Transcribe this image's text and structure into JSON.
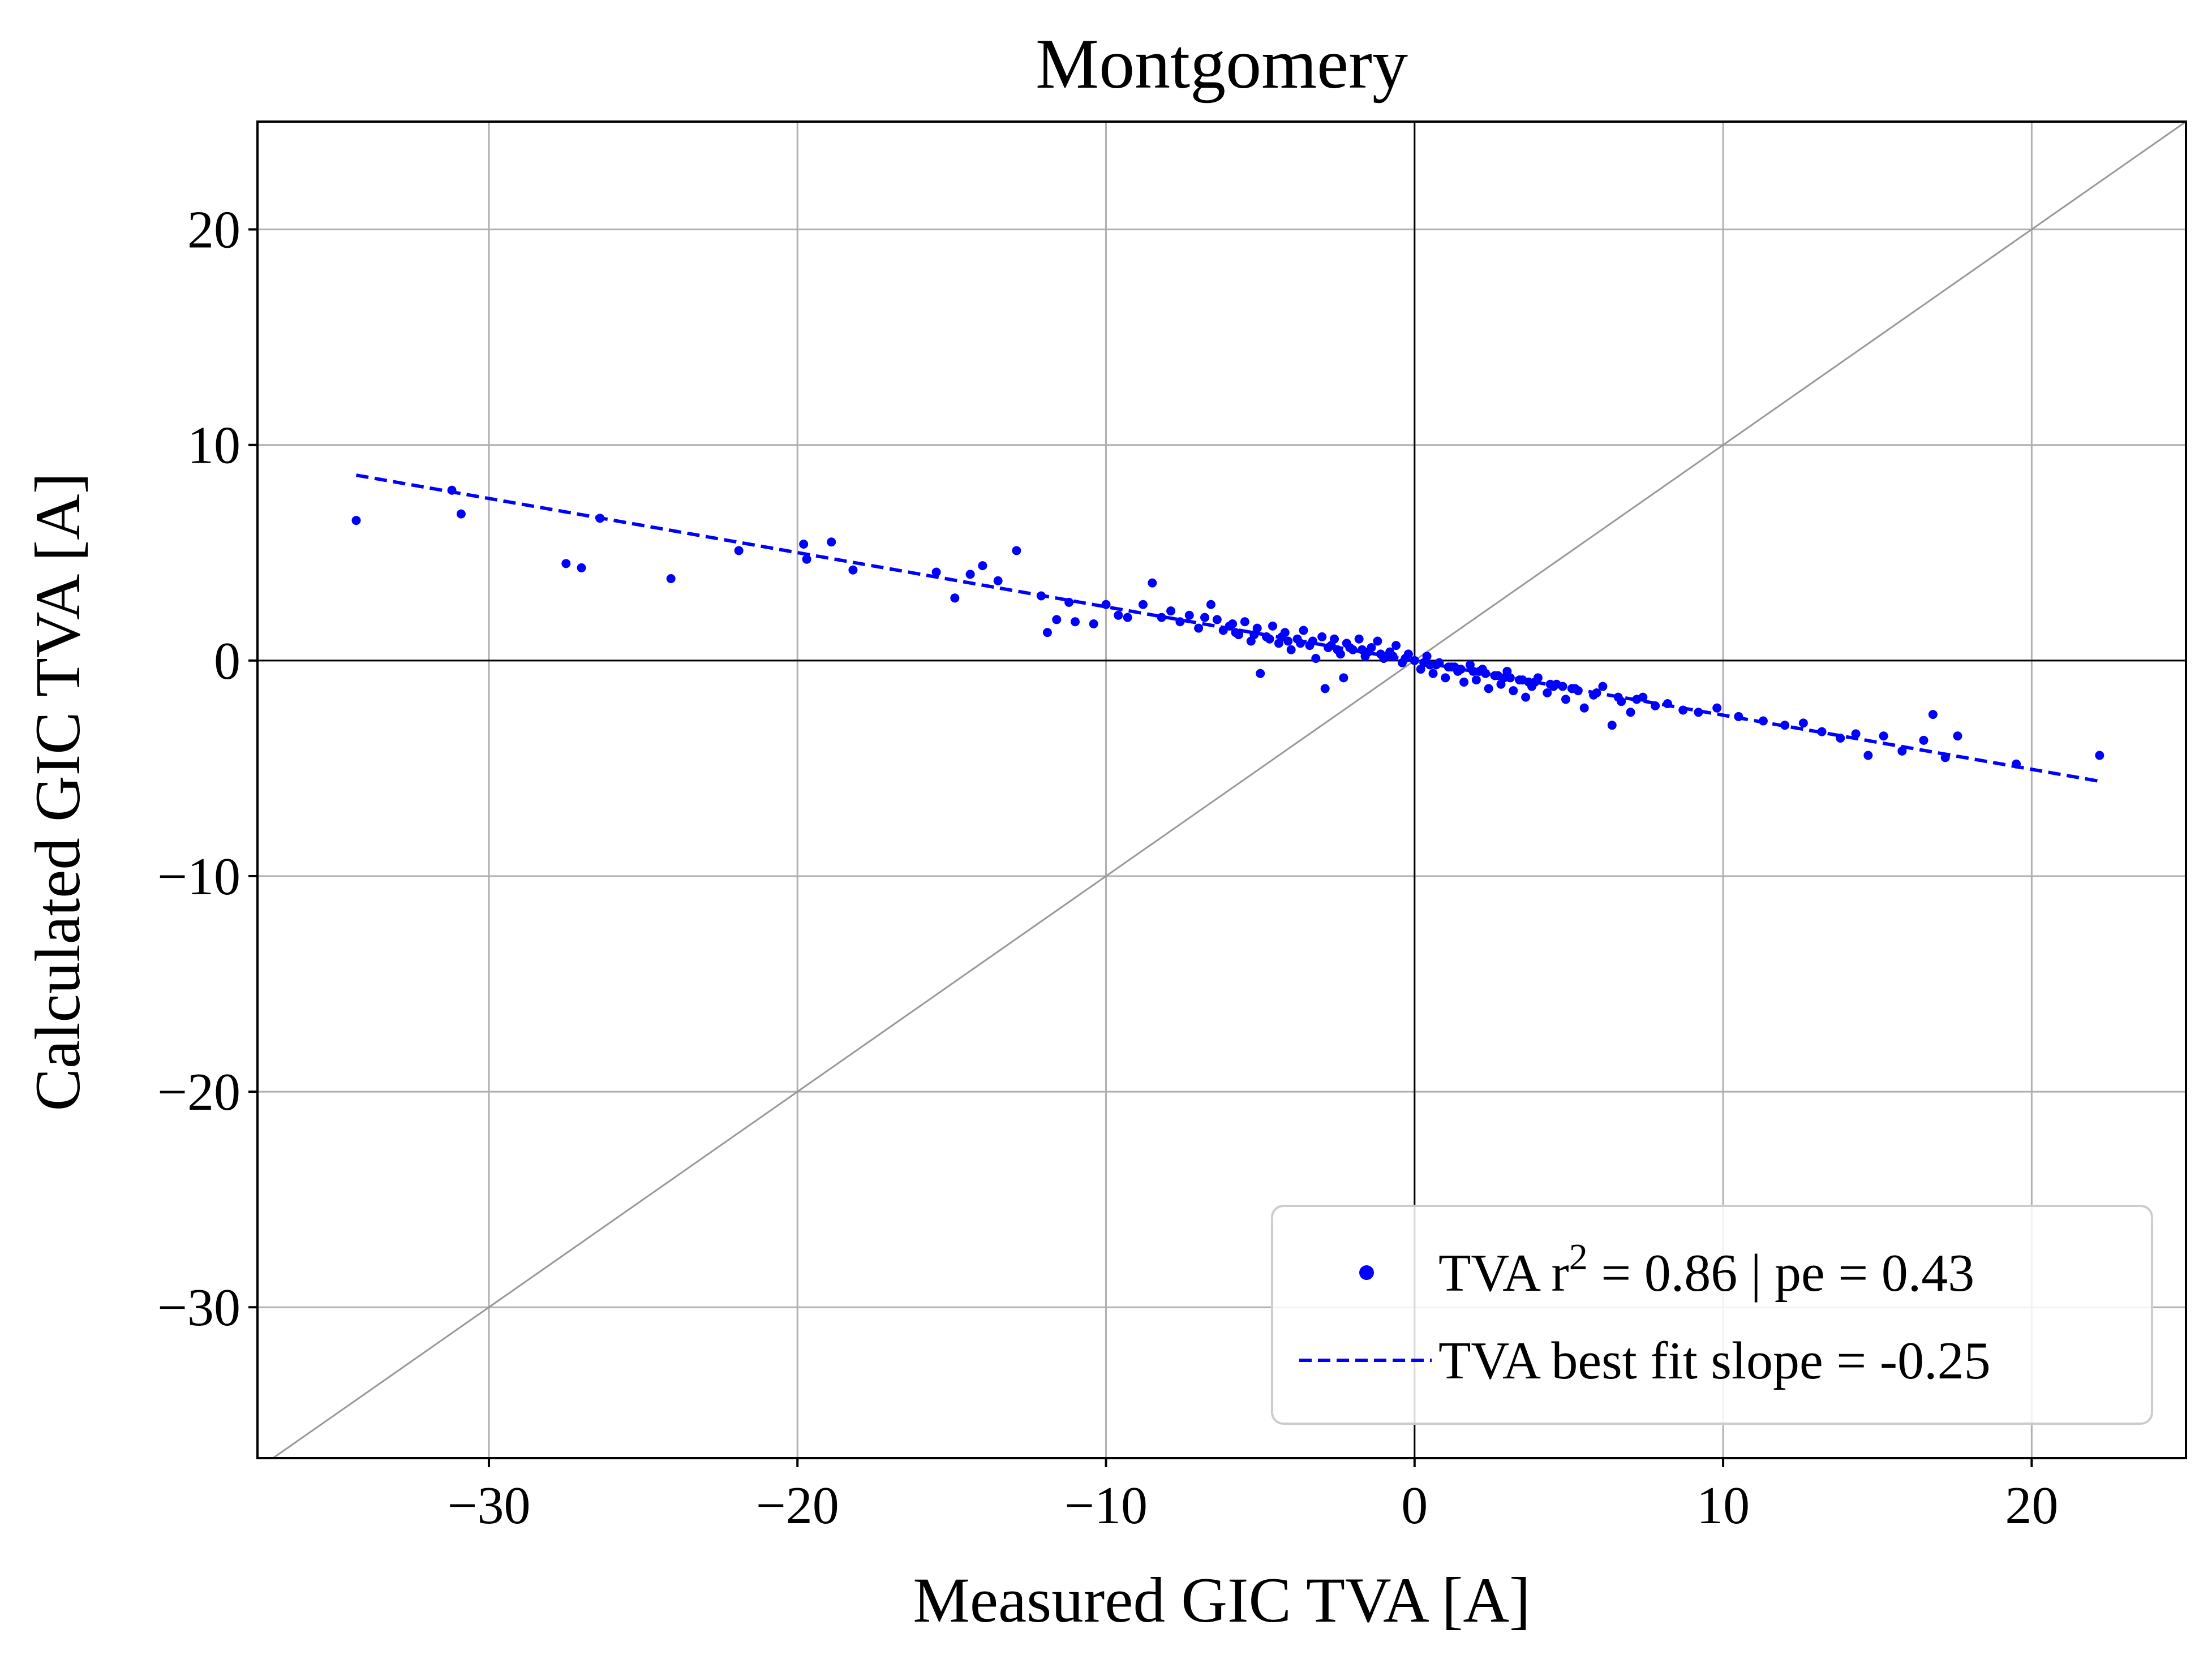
{
  "chart_data": {
    "type": "scatter",
    "title": "Montgomery",
    "xlabel": "Measured GIC TVA [A]",
    "ylabel": "Calculated GIC TVA [A]",
    "xlim": [
      -37.5,
      25
    ],
    "ylim": [
      -37,
      25
    ],
    "xticks": [
      -30,
      -20,
      -10,
      0,
      10,
      20
    ],
    "xtick_labels": [
      "−30",
      "−20",
      "−10",
      "0",
      "10",
      "20"
    ],
    "yticks": [
      -30,
      -20,
      -10,
      0,
      10,
      20
    ],
    "ytick_labels": [
      "−30",
      "−20",
      "−10",
      "0",
      "10",
      "20"
    ],
    "grid": true,
    "legend_position": "bottom-right",
    "colors": {
      "series": "#0000ff",
      "identity_line": "#999999",
      "axes": "#000000",
      "grid": "#b0b0b0"
    },
    "reference_lines": {
      "identity": "y = x",
      "zero_axes": true
    },
    "legend": {
      "scatter_label_main": "TVA r",
      "scatter_label_sup": "2",
      "scatter_label_rest": " = 0.86 | pe = 0.43",
      "fit_label": "TVA best fit slope = -0.25"
    },
    "series": [
      {
        "type": "scatter",
        "points": [
          [
            -34.3,
            6.5
          ],
          [
            -31.2,
            7.9
          ],
          [
            -30.9,
            6.8
          ],
          [
            -27.5,
            4.5
          ],
          [
            -27.0,
            4.3
          ],
          [
            -26.4,
            6.6
          ],
          [
            -24.1,
            3.8
          ],
          [
            -21.9,
            5.1
          ],
          [
            -19.8,
            5.4
          ],
          [
            -19.7,
            4.7
          ],
          [
            -18.9,
            5.5
          ],
          [
            -18.2,
            4.2
          ],
          [
            -15.5,
            4.1
          ],
          [
            -14.9,
            2.9
          ],
          [
            -14.4,
            4.0
          ],
          [
            -14.0,
            4.4
          ],
          [
            -13.5,
            3.7
          ],
          [
            -12.9,
            5.1
          ],
          [
            -12.1,
            3.0
          ],
          [
            -11.9,
            1.3
          ],
          [
            -11.6,
            1.9
          ],
          [
            -11.2,
            2.7
          ],
          [
            -11.0,
            1.8
          ],
          [
            -10.4,
            1.7
          ],
          [
            -10.0,
            2.6
          ],
          [
            -9.6,
            2.1
          ],
          [
            -9.3,
            2.0
          ],
          [
            -8.8,
            2.6
          ],
          [
            -8.5,
            3.6
          ],
          [
            -8.2,
            2.0
          ],
          [
            -7.9,
            2.3
          ],
          [
            -7.6,
            1.8
          ],
          [
            -7.3,
            2.1
          ],
          [
            -7.0,
            1.5
          ],
          [
            -6.8,
            2.0
          ],
          [
            -6.6,
            2.6
          ],
          [
            -6.4,
            1.9
          ],
          [
            -6.2,
            1.4
          ],
          [
            -5.9,
            1.7
          ],
          [
            -5.7,
            1.2
          ],
          [
            -5.5,
            1.8
          ],
          [
            -5.3,
            0.9
          ],
          [
            -5.1,
            1.5
          ],
          [
            -5.0,
            -0.6
          ],
          [
            -4.8,
            1.1
          ],
          [
            -4.6,
            1.6
          ],
          [
            -4.4,
            0.8
          ],
          [
            -4.2,
            1.3
          ],
          [
            -4.0,
            0.5
          ],
          [
            -3.8,
            1.0
          ],
          [
            -3.6,
            1.4
          ],
          [
            -3.4,
            0.7
          ],
          [
            -3.2,
            0.1
          ],
          [
            -3.0,
            1.1
          ],
          [
            -2.9,
            -1.3
          ],
          [
            -2.8,
            0.6
          ],
          [
            -2.6,
            1.0
          ],
          [
            -2.4,
            0.3
          ],
          [
            -2.3,
            -0.8
          ],
          [
            -2.2,
            0.8
          ],
          [
            -2.0,
            0.5
          ],
          [
            -1.8,
            1.0
          ],
          [
            -1.6,
            0.2
          ],
          [
            -1.4,
            0.6
          ],
          [
            -1.2,
            0.9
          ],
          [
            -1.0,
            0.1
          ],
          [
            -0.8,
            0.4
          ],
          [
            -0.6,
            0.7
          ],
          [
            -0.4,
            -0.1
          ],
          [
            -0.2,
            0.3
          ],
          [
            0.0,
            0.0
          ],
          [
            0.2,
            -0.4
          ],
          [
            0.4,
            0.2
          ],
          [
            0.6,
            -0.6
          ],
          [
            0.8,
            -0.1
          ],
          [
            1.0,
            -0.8
          ],
          [
            1.2,
            -0.3
          ],
          [
            1.4,
            -0.5
          ],
          [
            1.6,
            -1.0
          ],
          [
            1.8,
            -0.2
          ],
          [
            2.0,
            -0.9
          ],
          [
            2.2,
            -0.4
          ],
          [
            2.4,
            -1.3
          ],
          [
            2.6,
            -0.7
          ],
          [
            2.8,
            -1.1
          ],
          [
            3.0,
            -0.5
          ],
          [
            3.2,
            -1.4
          ],
          [
            3.4,
            -0.9
          ],
          [
            3.6,
            -1.7
          ],
          [
            3.8,
            -1.2
          ],
          [
            4.0,
            -0.8
          ],
          [
            4.3,
            -1.5
          ],
          [
            4.6,
            -1.1
          ],
          [
            4.9,
            -1.8
          ],
          [
            5.2,
            -1.3
          ],
          [
            5.5,
            -2.2
          ],
          [
            5.8,
            -1.6
          ],
          [
            6.1,
            -1.2
          ],
          [
            6.4,
            -3.0
          ],
          [
            6.7,
            -1.9
          ],
          [
            7.0,
            -2.4
          ],
          [
            7.4,
            -1.7
          ],
          [
            7.8,
            -2.1
          ],
          [
            8.2,
            -2.0
          ],
          [
            8.7,
            -2.3
          ],
          [
            9.2,
            -2.4
          ],
          [
            9.8,
            -2.2
          ],
          [
            10.5,
            -2.6
          ],
          [
            11.3,
            -2.8
          ],
          [
            12.0,
            -3.0
          ],
          [
            12.6,
            -2.9
          ],
          [
            13.2,
            -3.3
          ],
          [
            13.8,
            -3.6
          ],
          [
            14.3,
            -3.4
          ],
          [
            14.7,
            -4.4
          ],
          [
            15.2,
            -3.5
          ],
          [
            15.8,
            -4.2
          ],
          [
            16.5,
            -3.7
          ],
          [
            16.8,
            -2.5
          ],
          [
            17.2,
            -4.5
          ],
          [
            17.6,
            -3.5
          ],
          [
            19.5,
            -4.8
          ],
          [
            22.2,
            -4.4
          ],
          [
            -5.8,
            1.3
          ],
          [
            -5.2,
            1.2
          ],
          [
            -4.7,
            1.0
          ],
          [
            -4.1,
            0.9
          ],
          [
            -3.7,
            0.8
          ],
          [
            -3.3,
            0.9
          ],
          [
            -2.7,
            0.7
          ],
          [
            -2.1,
            0.6
          ],
          [
            -1.7,
            0.5
          ],
          [
            -1.1,
            0.3
          ],
          [
            -0.7,
            0.2
          ],
          [
            -0.3,
            0.1
          ],
          [
            0.3,
            -0.1
          ],
          [
            0.7,
            -0.2
          ],
          [
            1.1,
            -0.3
          ],
          [
            1.5,
            -0.4
          ],
          [
            1.9,
            -0.5
          ],
          [
            2.3,
            -0.6
          ],
          [
            2.7,
            -0.7
          ],
          [
            3.1,
            -0.8
          ],
          [
            3.5,
            -0.9
          ],
          [
            3.9,
            -1.0
          ],
          [
            4.4,
            -1.1
          ],
          [
            4.8,
            -1.2
          ],
          [
            5.3,
            -1.4
          ],
          [
            -6.0,
            1.6
          ],
          [
            -4.3,
            1.1
          ],
          [
            -2.5,
            0.5
          ],
          [
            -1.5,
            0.4
          ],
          [
            -0.9,
            0.2
          ],
          [
            0.5,
            -0.2
          ],
          [
            1.3,
            -0.3
          ],
          [
            2.1,
            -0.5
          ],
          [
            2.9,
            -0.8
          ],
          [
            3.7,
            -1.0
          ],
          [
            4.5,
            -1.2
          ],
          [
            5.1,
            -1.3
          ],
          [
            5.9,
            -1.5
          ],
          [
            6.6,
            -1.7
          ],
          [
            7.2,
            -1.8
          ]
        ]
      },
      {
        "type": "line",
        "style": "dashed",
        "points": [
          [
            -34.3,
            8.6
          ],
          [
            22.2,
            -5.6
          ]
        ]
      }
    ]
  }
}
